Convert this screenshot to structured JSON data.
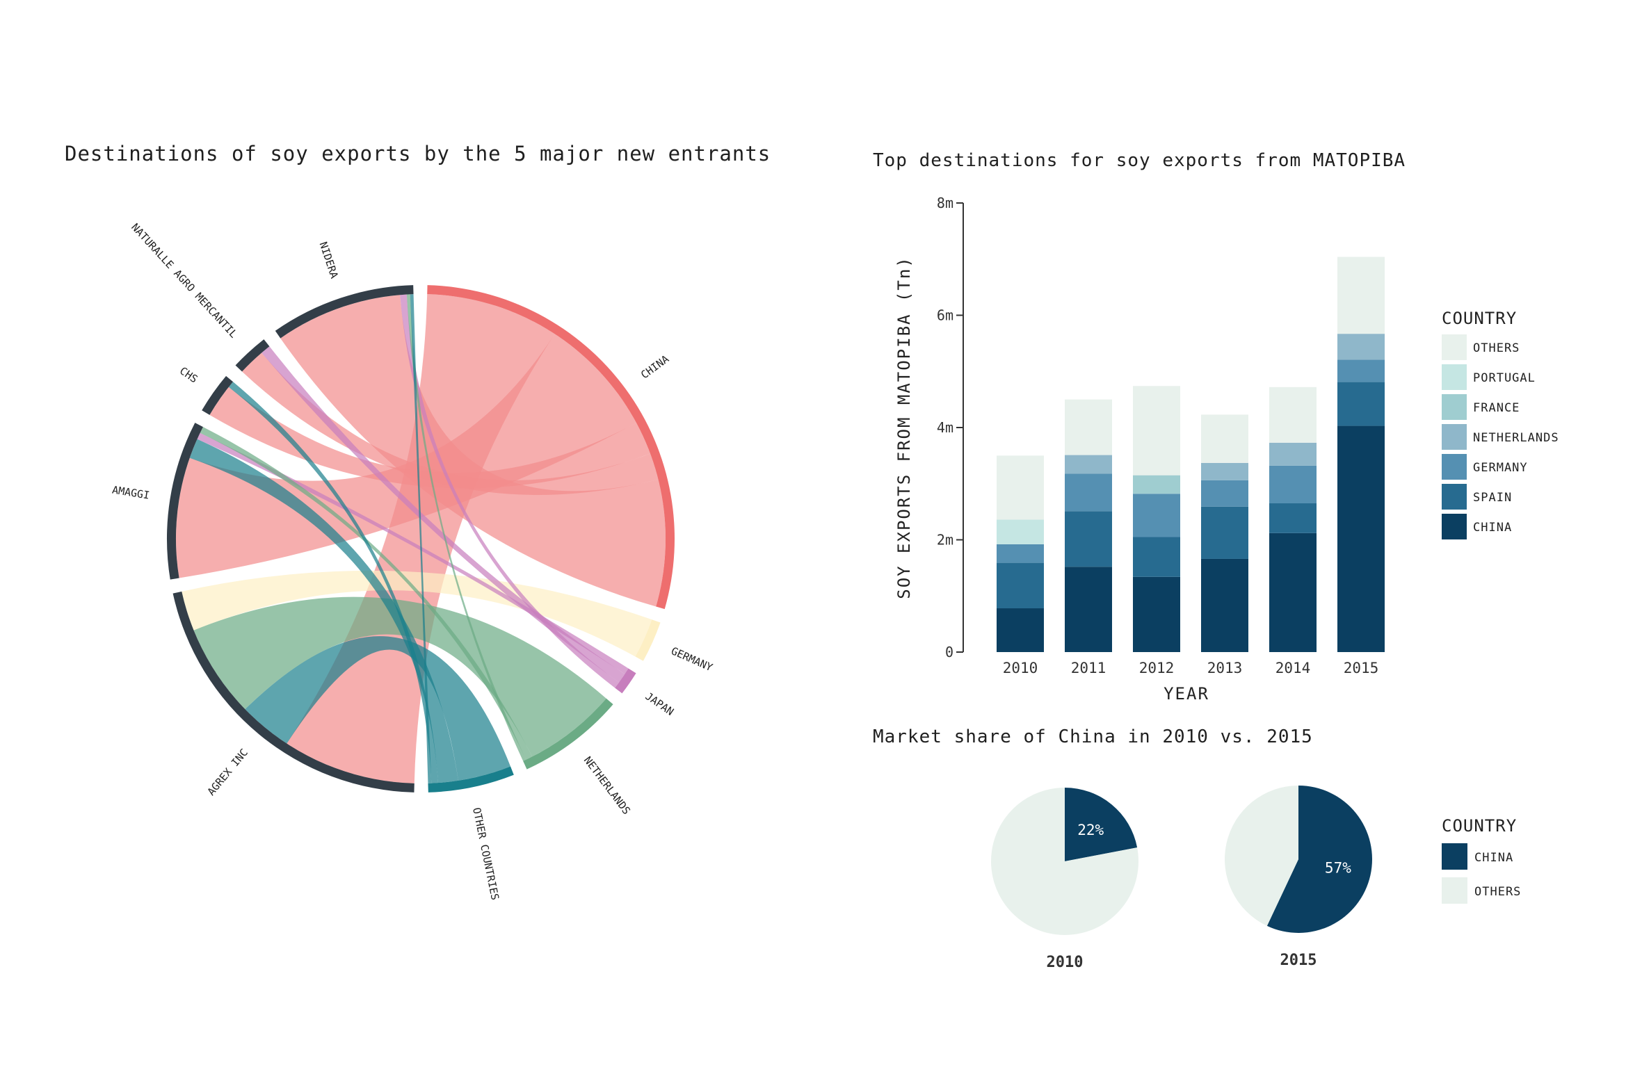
{
  "chart_data": [
    {
      "type": "chord",
      "title": "Destinations of soy exports by the 5 major new entrants",
      "groups": [
        {
          "name": "CHINA",
          "role": "destination",
          "color": "#ee6e6e"
        },
        {
          "name": "GERMANY",
          "role": "destination",
          "color": "#fdefc4"
        },
        {
          "name": "JAPAN",
          "role": "destination",
          "color": "#c77ebd"
        },
        {
          "name": "NETHERLANDS",
          "role": "destination",
          "color": "#6bab85"
        },
        {
          "name": "OTHER COUNTRIES",
          "role": "destination",
          "color": "#197f8c"
        },
        {
          "name": "AGREX INC",
          "role": "exporter",
          "color": "#333e48"
        },
        {
          "name": "AMAGGI",
          "role": "exporter",
          "color": "#333e48"
        },
        {
          "name": "CHS",
          "role": "exporter",
          "color": "#333e48"
        },
        {
          "name": "NATURALLE AGRO MERCANTIL",
          "role": "exporter",
          "color": "#333e48"
        },
        {
          "name": "NIDERA",
          "role": "exporter",
          "color": "#333e48"
        }
      ],
      "flows": [
        {
          "from": "AGREX INC",
          "to": "CHINA",
          "value": 20
        },
        {
          "from": "AGREX INC",
          "to": "OTHER COUNTRIES",
          "value": 8
        },
        {
          "from": "AGREX INC",
          "to": "NETHERLANDS",
          "value": 14
        },
        {
          "from": "AGREX INC",
          "to": "GERMANY",
          "value": 6
        },
        {
          "from": "AMAGGI",
          "to": "CHINA",
          "value": 18
        },
        {
          "from": "AMAGGI",
          "to": "OTHER COUNTRIES",
          "value": 3
        },
        {
          "from": "AMAGGI",
          "to": "JAPAN",
          "value": 1
        },
        {
          "from": "AMAGGI",
          "to": "NETHERLANDS",
          "value": 1
        },
        {
          "from": "CHS",
          "to": "CHINA",
          "value": 5
        },
        {
          "from": "CHS",
          "to": "OTHER COUNTRIES",
          "value": 1
        },
        {
          "from": "NATURALLE AGRO MERCANTIL",
          "to": "CHINA",
          "value": 4
        },
        {
          "from": "NATURALLE AGRO MERCANTIL",
          "to": "JAPAN",
          "value": 1.5
        },
        {
          "from": "NIDERA",
          "to": "CHINA",
          "value": 19
        },
        {
          "from": "NIDERA",
          "to": "JAPAN",
          "value": 1
        },
        {
          "from": "NIDERA",
          "to": "NETHERLANDS",
          "value": 0.5
        },
        {
          "from": "NIDERA",
          "to": "OTHER COUNTRIES",
          "value": 0.5
        }
      ]
    },
    {
      "type": "bar",
      "stacked": true,
      "title": "Top destinations for soy exports from MATOPIBA",
      "xlabel": "YEAR",
      "ylabel": "SOY EXPORTS FROM MATOPIBA (Tn)",
      "categories": [
        "2010",
        "2011",
        "2012",
        "2013",
        "2014",
        "2015"
      ],
      "ylim": [
        0,
        8000000
      ],
      "yticks": [
        0,
        2000000,
        4000000,
        6000000,
        8000000
      ],
      "ytick_labels": [
        "0",
        "2m",
        "4m",
        "6m",
        "8m"
      ],
      "legend_title": "COUNTRY",
      "legend_position": "right",
      "series": [
        {
          "name": "CHINA",
          "color": "#0b3f61",
          "values": [
            780000,
            1520000,
            1340000,
            1660000,
            2120000,
            4030000
          ]
        },
        {
          "name": "SPAIN",
          "color": "#276b90",
          "values": [
            810000,
            990000,
            710000,
            930000,
            530000,
            780000
          ]
        },
        {
          "name": "GERMANY",
          "color": "#5590b2",
          "values": [
            330000,
            670000,
            770000,
            470000,
            670000,
            400000
          ]
        },
        {
          "name": "NETHERLANDS",
          "color": "#8fb7ca",
          "values": [
            0,
            330000,
            0,
            310000,
            410000,
            460000
          ]
        },
        {
          "name": "FRANCE",
          "color": "#9fcdd0",
          "values": [
            0,
            0,
            330000,
            0,
            0,
            0
          ]
        },
        {
          "name": "PORTUGAL",
          "color": "#c5e6e3",
          "values": [
            440000,
            0,
            0,
            0,
            0,
            0
          ]
        },
        {
          "name": "OTHERS",
          "color": "#e8f1ec",
          "values": [
            1140000,
            990000,
            1590000,
            860000,
            990000,
            1370000
          ]
        }
      ]
    },
    {
      "type": "pie",
      "title": "Market share of China in 2010 vs. 2015",
      "legend_title": "COUNTRY",
      "legend_position": "right",
      "pies": [
        {
          "label": "2010",
          "slices": [
            {
              "name": "CHINA",
              "value": 22,
              "label": "22%",
              "color": "#0b3f61"
            },
            {
              "name": "OTHERS",
              "value": 78,
              "color": "#e8f1ec"
            }
          ]
        },
        {
          "label": "2015",
          "slices": [
            {
              "name": "CHINA",
              "value": 57,
              "label": "57%",
              "color": "#0b3f61"
            },
            {
              "name": "OTHERS",
              "value": 43,
              "color": "#e8f1ec"
            }
          ]
        }
      ]
    }
  ]
}
